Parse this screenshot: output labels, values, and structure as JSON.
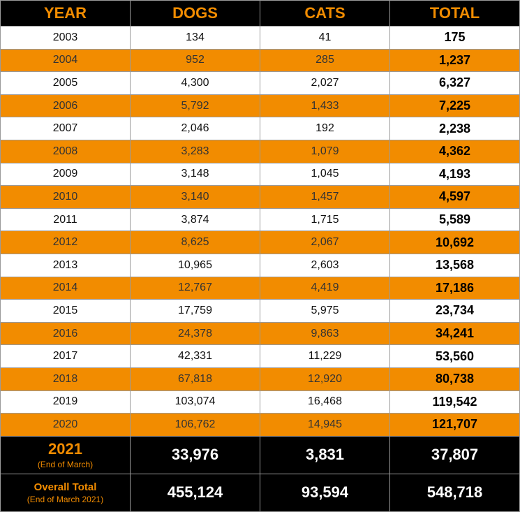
{
  "table": {
    "header": [
      "YEAR",
      "DOGS",
      "CATS",
      "TOTAL"
    ],
    "rows": [
      [
        "2003",
        "134",
        "41",
        "175"
      ],
      [
        "2004",
        "952",
        "285",
        "1,237"
      ],
      [
        "2005",
        "4,300",
        "2,027",
        "6,327"
      ],
      [
        "2006",
        "5,792",
        "1,433",
        "7,225"
      ],
      [
        "2007",
        "2,046",
        "192",
        "2,238"
      ],
      [
        "2008",
        "3,283",
        "1,079",
        "4,362"
      ],
      [
        "2009",
        "3,148",
        "1,045",
        "4,193"
      ],
      [
        "2010",
        "3,140",
        "1,457",
        "4,597"
      ],
      [
        "2011",
        "3,874",
        "1,715",
        "5,589"
      ],
      [
        "2012",
        "8,625",
        "2,067",
        "10,692"
      ],
      [
        "2013",
        "10,965",
        "2,603",
        "13,568"
      ],
      [
        "2014",
        "12,767",
        "4,419",
        "17,186"
      ],
      [
        "2015",
        "17,759",
        "5,975",
        "23,734"
      ],
      [
        "2016",
        "24,378",
        "9,863",
        "34,241"
      ],
      [
        "2017",
        "42,331",
        "11,229",
        "53,560"
      ],
      [
        "2018",
        "67,818",
        "12,920",
        "80,738"
      ],
      [
        "2019",
        "103,074",
        "16,468",
        "119,542"
      ],
      [
        "2020",
        "106,762",
        "14,945",
        "121,707"
      ]
    ],
    "footer": [
      {
        "label": "2021",
        "note": "(End of March)",
        "dogs": "33,976",
        "cats": "3,831",
        "total": "37,807"
      },
      {
        "label": "Overall Total",
        "note": "(End of March 2021)",
        "dogs": "455,124",
        "cats": "93,594",
        "total": "548,718"
      }
    ]
  }
}
